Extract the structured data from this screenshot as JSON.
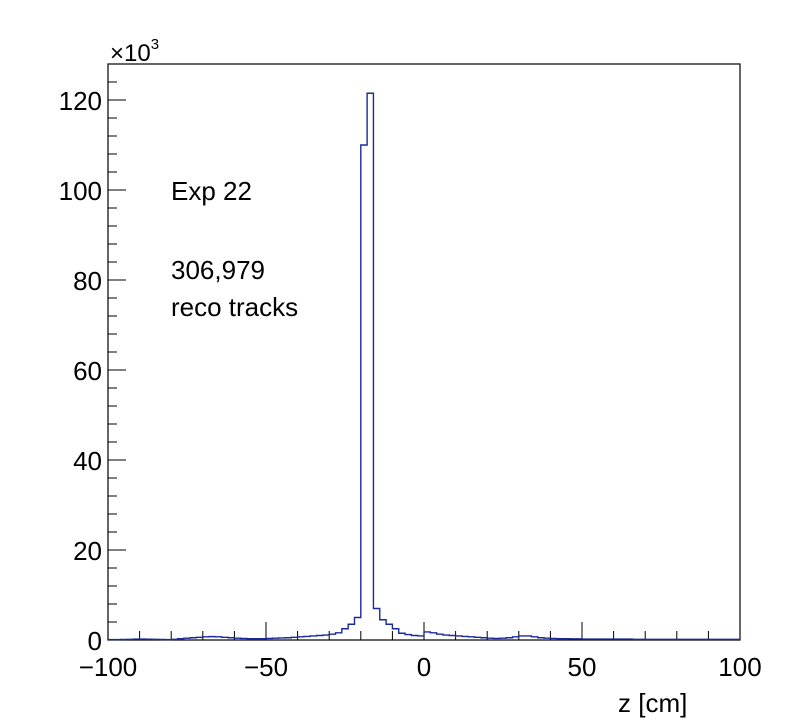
{
  "chart_data": {
    "type": "histogram",
    "xlabel": "z [cm]",
    "ylabel": "",
    "xlim": [
      -100,
      100
    ],
    "ylim": [
      0,
      128000
    ],
    "y_multiplier_label": "×10",
    "y_multiplier_exponent": "3",
    "x_ticks": [
      "−100",
      "−50",
      "0",
      "50",
      "100"
    ],
    "y_ticks": [
      "0",
      "20",
      "40",
      "60",
      "80",
      "100",
      "120"
    ],
    "annotations": {
      "experiment": "Exp 22",
      "count": "306,979",
      "count_label": "reco tracks"
    },
    "line_color": "#1a2a9a",
    "bin_width": 2,
    "bin_edges_start": -100,
    "values": [
      100,
      100,
      120,
      150,
      200,
      200,
      180,
      150,
      120,
      100,
      150,
      300,
      400,
      500,
      600,
      700,
      750,
      700,
      600,
      500,
      400,
      350,
      300,
      300,
      300,
      350,
      400,
      450,
      500,
      600,
      700,
      800,
      900,
      1000,
      1100,
      1300,
      1600,
      2500,
      3500,
      5000,
      110000,
      121500,
      7000,
      4500,
      3500,
      2500,
      1500,
      1200,
      1000,
      900,
      1800,
      1600,
      1300,
      1100,
      1000,
      900,
      800,
      700,
      600,
      500,
      400,
      350,
      400,
      500,
      700,
      900,
      900,
      700,
      500,
      400,
      350,
      300,
      300,
      250,
      250,
      200,
      200,
      200,
      200,
      200,
      200,
      200,
      200,
      150,
      150,
      150,
      150,
      150,
      150,
      150,
      150,
      150,
      150,
      150,
      150,
      150,
      150,
      150,
      150,
      150
    ]
  }
}
